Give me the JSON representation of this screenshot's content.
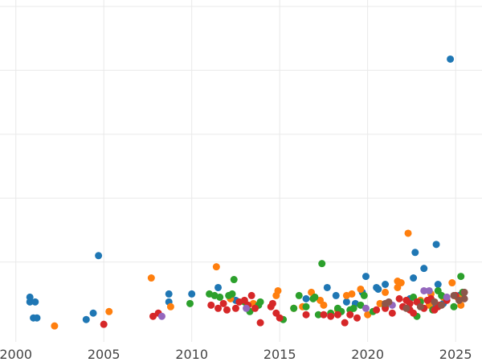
{
  "chart_data": {
    "type": "scatter",
    "title": "",
    "xlabel": "",
    "ylabel": "",
    "xlim": [
      1999.1,
      2026.5
    ],
    "ylim": [
      -0.5,
      10.2
    ],
    "x_ticks": [
      "2000",
      "2005",
      "2010",
      "2015",
      "2020",
      "2025"
    ],
    "y_gridlines": [
      2,
      4,
      6,
      8,
      10
    ],
    "grid": true,
    "legend": "none",
    "colors": {
      "blue": "#1f77b4",
      "orange": "#ff7f0e",
      "green": "#2ca02c",
      "red": "#d62728",
      "purple": "#9467bd",
      "brown": "#8c564b"
    },
    "series": [
      {
        "color_key": "blue",
        "points": [
          [
            2000.8,
            0.75
          ],
          [
            2000.8,
            0.9
          ],
          [
            2001.1,
            0.75
          ],
          [
            2001.0,
            0.25
          ],
          [
            2001.2,
            0.25
          ],
          [
            2004.0,
            0.2
          ],
          [
            2004.4,
            0.4
          ],
          [
            2004.7,
            2.2
          ],
          [
            2008.7,
            1.0
          ],
          [
            2008.7,
            0.75
          ],
          [
            2010.0,
            1.0
          ],
          [
            2011.5,
            1.2
          ],
          [
            2012.5,
            0.8
          ],
          [
            2016.5,
            0.85
          ],
          [
            2017.7,
            1.2
          ],
          [
            2018.2,
            0.95
          ],
          [
            2018.8,
            0.75
          ],
          [
            2019.3,
            0.7
          ],
          [
            2019.7,
            1.05
          ],
          [
            2019.9,
            1.55
          ],
          [
            2020.5,
            1.2
          ],
          [
            2020.6,
            1.15
          ],
          [
            2021.0,
            1.3
          ],
          [
            2022.4,
            0.85
          ],
          [
            2022.6,
            1.5
          ],
          [
            2022.7,
            2.3
          ],
          [
            2023.2,
            1.8
          ],
          [
            2023.8,
            0.7
          ],
          [
            2023.9,
            2.55
          ],
          [
            2024.0,
            1.3
          ],
          [
            2024.3,
            0.7
          ],
          [
            2024.7,
            8.35
          ],
          [
            2025.2,
            0.95
          ],
          [
            2025.4,
            0.9
          ]
        ]
      },
      {
        "color_key": "orange",
        "points": [
          [
            2002.2,
            0.0
          ],
          [
            2005.3,
            0.45
          ],
          [
            2007.7,
            1.5
          ],
          [
            2008.8,
            0.6
          ],
          [
            2011.4,
            1.85
          ],
          [
            2012.2,
            0.85
          ],
          [
            2013.5,
            0.7
          ],
          [
            2014.8,
            0.95
          ],
          [
            2014.9,
            1.1
          ],
          [
            2015.8,
            0.55
          ],
          [
            2016.3,
            0.6
          ],
          [
            2016.8,
            1.05
          ],
          [
            2017.3,
            0.8
          ],
          [
            2017.5,
            0.65
          ],
          [
            2018.3,
            0.5
          ],
          [
            2018.8,
            0.95
          ],
          [
            2019.1,
            1.0
          ],
          [
            2019.6,
            1.15
          ],
          [
            2020.0,
            0.35
          ],
          [
            2020.7,
            0.7
          ],
          [
            2021.0,
            1.05
          ],
          [
            2021.7,
            1.2
          ],
          [
            2021.7,
            1.4
          ],
          [
            2021.9,
            1.35
          ],
          [
            2022.3,
            2.9
          ],
          [
            2023.0,
            0.8
          ],
          [
            2023.5,
            0.65
          ],
          [
            2023.6,
            1.0
          ],
          [
            2023.8,
            0.75
          ],
          [
            2024.3,
            0.9
          ],
          [
            2024.8,
            1.35
          ],
          [
            2025.1,
            0.9
          ],
          [
            2025.3,
            0.65
          ],
          [
            2025.4,
            0.95
          ]
        ]
      },
      {
        "color_key": "green",
        "points": [
          [
            2009.9,
            0.7
          ],
          [
            2011.0,
            1.0
          ],
          [
            2011.3,
            0.95
          ],
          [
            2011.6,
            0.9
          ],
          [
            2012.1,
            0.95
          ],
          [
            2012.3,
            1.0
          ],
          [
            2012.4,
            1.45
          ],
          [
            2013.0,
            0.75
          ],
          [
            2013.3,
            0.45
          ],
          [
            2013.8,
            0.65
          ],
          [
            2013.9,
            0.75
          ],
          [
            2015.2,
            0.2
          ],
          [
            2015.8,
            0.55
          ],
          [
            2016.1,
            0.95
          ],
          [
            2016.5,
            0.6
          ],
          [
            2016.9,
            0.85
          ],
          [
            2017.0,
            0.9
          ],
          [
            2017.2,
            0.35
          ],
          [
            2017.4,
            1.95
          ],
          [
            2017.9,
            0.4
          ],
          [
            2018.3,
            0.55
          ],
          [
            2018.5,
            0.45
          ],
          [
            2019.0,
            0.5
          ],
          [
            2019.2,
            0.55
          ],
          [
            2019.6,
            0.65
          ],
          [
            2019.8,
            0.95
          ],
          [
            2020.3,
            0.45
          ],
          [
            2021.0,
            0.6
          ],
          [
            2022.6,
            0.9
          ],
          [
            2022.8,
            0.3
          ],
          [
            2023.0,
            0.75
          ],
          [
            2023.7,
            0.5
          ],
          [
            2024.0,
            1.1
          ],
          [
            2024.2,
            0.95
          ],
          [
            2024.9,
            0.6
          ],
          [
            2025.3,
            1.55
          ],
          [
            2025.4,
            1.05
          ]
        ]
      },
      {
        "color_key": "red",
        "points": [
          [
            2005.0,
            0.05
          ],
          [
            2007.8,
            0.3
          ],
          [
            2008.1,
            0.4
          ],
          [
            2011.1,
            0.65
          ],
          [
            2011.5,
            0.55
          ],
          [
            2011.8,
            0.7
          ],
          [
            2012.0,
            0.5
          ],
          [
            2012.5,
            0.55
          ],
          [
            2012.7,
            0.75
          ],
          [
            2013.0,
            0.8
          ],
          [
            2013.2,
            0.65
          ],
          [
            2013.4,
            0.95
          ],
          [
            2013.6,
            0.55
          ],
          [
            2013.9,
            0.1
          ],
          [
            2014.5,
            0.6
          ],
          [
            2014.6,
            0.7
          ],
          [
            2014.8,
            0.4
          ],
          [
            2015.0,
            0.25
          ],
          [
            2016.5,
            0.35
          ],
          [
            2017.5,
            0.35
          ],
          [
            2017.9,
            0.3
          ],
          [
            2018.3,
            0.35
          ],
          [
            2018.7,
            0.1
          ],
          [
            2019.0,
            0.35
          ],
          [
            2019.4,
            0.25
          ],
          [
            2020.5,
            0.5
          ],
          [
            2021.0,
            0.55
          ],
          [
            2021.4,
            0.4
          ],
          [
            2021.8,
            0.85
          ],
          [
            2022.0,
            0.6
          ],
          [
            2022.2,
            0.8
          ],
          [
            2022.4,
            0.5
          ],
          [
            2022.4,
            0.7
          ],
          [
            2022.6,
            0.4
          ],
          [
            2022.8,
            0.75
          ],
          [
            2023.2,
            0.55
          ],
          [
            2023.4,
            0.8
          ],
          [
            2023.6,
            0.85
          ],
          [
            2023.8,
            0.5
          ],
          [
            2024.0,
            0.6
          ],
          [
            2024.1,
            0.65
          ],
          [
            2024.5,
            0.8
          ],
          [
            2025.0,
            0.95
          ]
        ]
      },
      {
        "color_key": "purple",
        "points": [
          [
            2008.3,
            0.3
          ],
          [
            2013.1,
            0.55
          ],
          [
            2019.9,
            0.55
          ],
          [
            2021.4,
            0.65
          ],
          [
            2023.2,
            1.1
          ],
          [
            2023.5,
            1.1
          ],
          [
            2024.5,
            0.9
          ]
        ]
      },
      {
        "color_key": "brown",
        "points": [
          [
            2021.0,
            0.7
          ],
          [
            2022.2,
            0.55
          ],
          [
            2023.0,
            0.6
          ],
          [
            2023.8,
            0.75
          ],
          [
            2024.2,
            0.65
          ],
          [
            2024.9,
            0.95
          ],
          [
            2025.2,
            0.8
          ],
          [
            2025.5,
            0.85
          ],
          [
            2025.5,
            1.05
          ],
          [
            2021.2,
            0.75
          ]
        ]
      }
    ]
  }
}
